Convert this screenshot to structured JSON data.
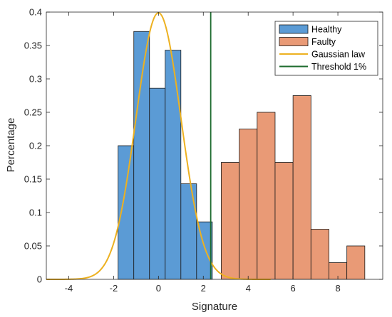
{
  "chart_data": {
    "type": "histogram",
    "xlabel": "Signature",
    "ylabel": "Percentage",
    "xlim": [
      -5,
      10
    ],
    "ylim": [
      0,
      0.4
    ],
    "xticks": [
      -4,
      -2,
      0,
      2,
      4,
      6,
      8
    ],
    "xtick_labels": [
      "-4",
      "-2",
      "0",
      "2",
      "4",
      "6",
      "8"
    ],
    "yticks": [
      0,
      0.05,
      0.1,
      0.15,
      0.2,
      0.25,
      0.3,
      0.35,
      0.4
    ],
    "ytick_labels": [
      "0",
      "0.05",
      "0.1",
      "0.15",
      "0.2",
      "0.25",
      "0.3",
      "0.35",
      "0.4"
    ],
    "grid": false,
    "legend_position": "top-right",
    "series": [
      {
        "name": "Healthy",
        "kind": "histogram",
        "color": "#5B9BD5",
        "bin_edges": [
          -1.8,
          -1.1,
          -0.4,
          0.3,
          1.0,
          1.7,
          2.4
        ],
        "values": [
          0.2,
          0.371,
          0.286,
          0.343,
          0.143,
          0.086
        ]
      },
      {
        "name": "Faulty",
        "kind": "histogram",
        "color": "#E99A76",
        "bin_edges": [
          2.8,
          3.6,
          4.4,
          5.2,
          6.0,
          6.8,
          7.6,
          8.4,
          9.2
        ],
        "values": [
          0.175,
          0.225,
          0.25,
          0.175,
          0.275,
          0.075,
          0.025,
          0.05
        ]
      },
      {
        "name": "Gaussian law",
        "kind": "line",
        "color": "#EDB120",
        "mean": 0,
        "std": 1,
        "x_range": [
          -5,
          5
        ]
      },
      {
        "name": "Threshold 1%",
        "kind": "vline",
        "color": "#1D6B2E",
        "x": 2.33
      }
    ]
  }
}
